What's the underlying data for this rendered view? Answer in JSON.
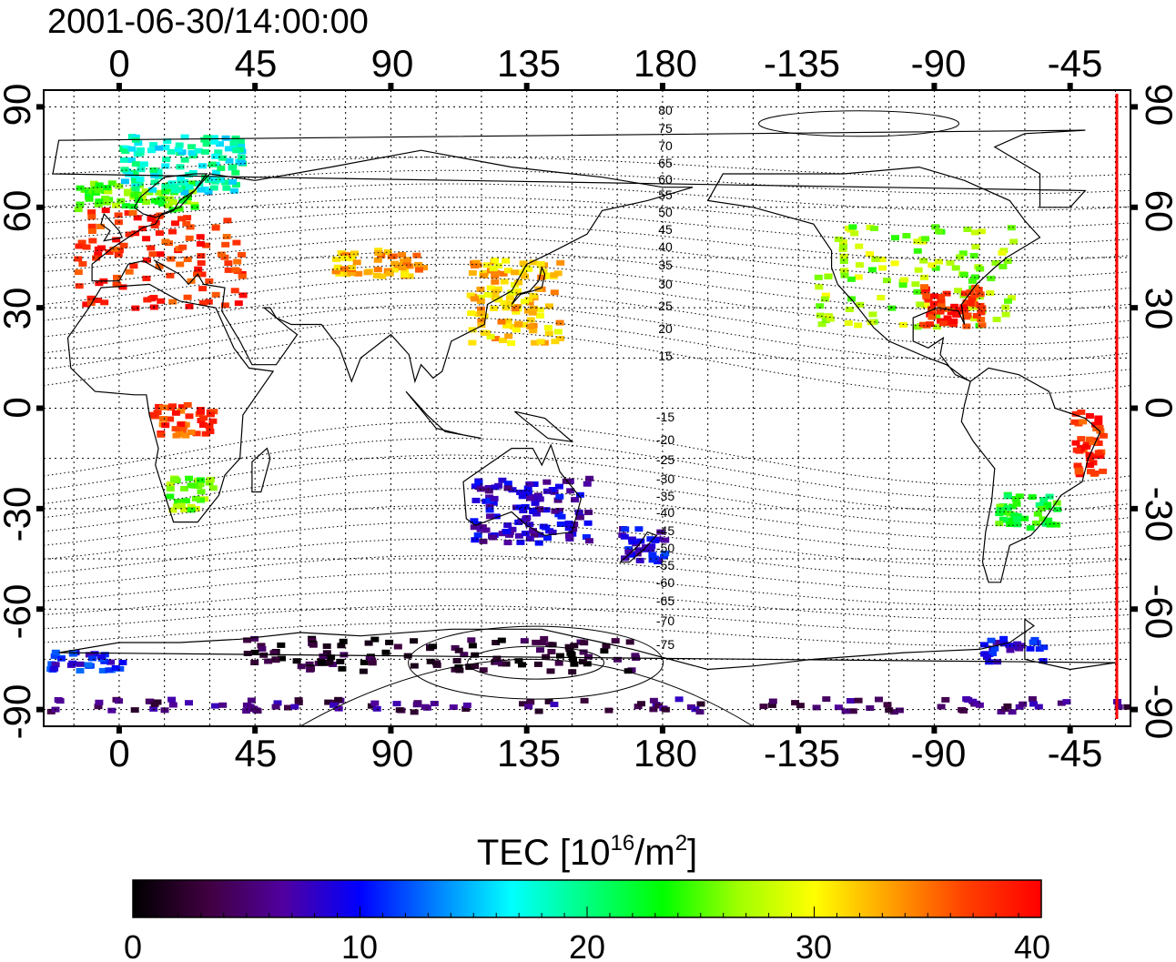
{
  "title": "2001-06-30/14:00:00",
  "map": {
    "top_lon_labels": [
      "0",
      "45",
      "90",
      "135",
      "180",
      "-135",
      "-90",
      "-45"
    ],
    "bottom_lon_labels": [
      "0",
      "45",
      "90",
      "135",
      "180",
      "-135",
      "-90",
      "-45"
    ],
    "left_lat_labels": [
      "90",
      "60",
      "30",
      "0",
      "-30",
      "-60",
      "-90"
    ],
    "right_lat_labels": [
      "90",
      "60",
      "30",
      "0",
      "-30",
      "-60",
      "-90"
    ],
    "north_contour_labels": [
      "80",
      "75",
      "70",
      "65",
      "60",
      "55",
      "50",
      "45",
      "40",
      "35",
      "30",
      "25",
      "20",
      "15"
    ],
    "south_contour_labels": [
      "-15",
      "-20",
      "-25",
      "-30",
      "-35",
      "-40",
      "-45",
      "-50",
      "-55",
      "-60",
      "-65",
      "-70",
      "-75"
    ],
    "terminator_color": "#ff0000",
    "lon_range": [
      -25,
      335
    ],
    "lat_range": [
      -95,
      95
    ]
  },
  "colorbar": {
    "label_main": "TEC  [10",
    "label_sup1": "16",
    "label_mid": "/m",
    "label_sup2": "2",
    "label_end": "]",
    "ticks": [
      "0",
      "10",
      "20",
      "30",
      "40"
    ],
    "range": [
      0,
      40
    ],
    "colors": [
      "#000000",
      "#400040",
      "#5000a0",
      "#0000ff",
      "#0080ff",
      "#00ffff",
      "#00ff80",
      "#00ff00",
      "#a0ff00",
      "#ffff00",
      "#ffa000",
      "#ff4000",
      "#ff0000"
    ]
  },
  "chart_data": {
    "type": "heatmap",
    "title": "2001-06-30/14:00:00",
    "value_label": "TEC [10^16/m^2]",
    "value_range": [
      0,
      40
    ],
    "regions": [
      {
        "lon": [
          -15,
          40
        ],
        "lat": [
          30,
          60
        ],
        "tec": 38
      },
      {
        "lon": [
          -15,
          25
        ],
        "lat": [
          60,
          68
        ],
        "tec": 25
      },
      {
        "lon": [
          0,
          40
        ],
        "lat": [
          65,
          82
        ],
        "tec": 18
      },
      {
        "lon": [
          70,
          100
        ],
        "lat": [
          40,
          48
        ],
        "tec": 33
      },
      {
        "lon": [
          115,
          145
        ],
        "lat": [
          20,
          45
        ],
        "tec": 32
      },
      {
        "lon": [
          10,
          30
        ],
        "lat": [
          -8,
          2
        ],
        "tec": 37
      },
      {
        "lon": [
          15,
          30
        ],
        "lat": [
          -30,
          -20
        ],
        "tec": 26
      },
      {
        "lon": [
          -130,
          -65
        ],
        "lat": [
          25,
          55
        ],
        "tec": 27
      },
      {
        "lon": [
          -95,
          -75
        ],
        "lat": [
          25,
          38
        ],
        "tec": 38
      },
      {
        "lon": [
          -45,
          -35
        ],
        "lat": [
          -20,
          0
        ],
        "tec": 38
      },
      {
        "lon": [
          -70,
          -50
        ],
        "lat": [
          -35,
          -25
        ],
        "tec": 23
      },
      {
        "lon": [
          115,
          155
        ],
        "lat": [
          -40,
          -20
        ],
        "tec": 8
      },
      {
        "lon": [
          165,
          180
        ],
        "lat": [
          -45,
          -35
        ],
        "tec": 9
      },
      {
        "lon": [
          40,
          170
        ],
        "lat": [
          -78,
          -68
        ],
        "tec": 2
      },
      {
        "lon": [
          -25,
          0
        ],
        "lat": [
          -78,
          -72
        ],
        "tec": 10
      },
      {
        "lon": [
          -75,
          -55
        ],
        "lat": [
          -75,
          -68
        ],
        "tec": 9
      },
      {
        "lon": [
          -25,
          335
        ],
        "lat": [
          -90,
          -86
        ],
        "tec": 5
      }
    ]
  }
}
